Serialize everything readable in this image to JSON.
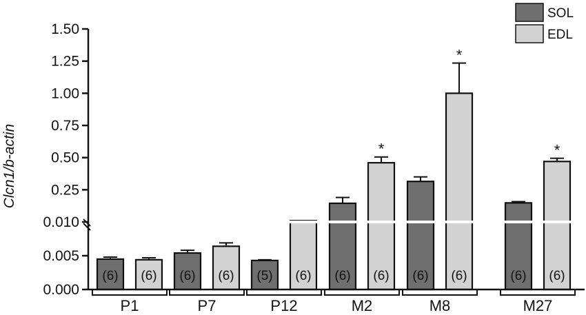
{
  "chart_data": {
    "type": "bar",
    "ylabel": "Clcn1/b-actin",
    "y_axis": {
      "lower_segment": {
        "range": [
          0,
          0.01
        ],
        "ticks": [
          0,
          0.005,
          0.01
        ],
        "tick_labels": [
          "0.000",
          "0.005",
          "0.010"
        ]
      },
      "upper_segment": {
        "range": [
          0,
          1.5
        ],
        "ticks": [
          0.25,
          0.5,
          0.75,
          1.0,
          1.25,
          1.5
        ],
        "tick_labels": [
          "0.25",
          "0.50",
          "0.75",
          "1.00",
          "1.25",
          "1.50"
        ]
      },
      "break": true
    },
    "categories": [
      "P1",
      "P7",
      "P12",
      "M2",
      "M8",
      "M27"
    ],
    "series": [
      {
        "name": "SOL",
        "color": "#6f6f6f",
        "values": [
          0.0045,
          0.0054,
          0.0043,
          0.145,
          0.315,
          0.148
        ],
        "errors": [
          0.0003,
          0.0004,
          0.0001,
          0.045,
          0.035,
          0.01
        ],
        "n": [
          "(6)",
          "(6)",
          "(5)",
          "(6)",
          "(6)",
          "(6)"
        ],
        "significant": [
          false,
          false,
          false,
          false,
          false,
          false
        ]
      },
      {
        "name": "EDL",
        "color": "#d3d3d3",
        "values": [
          0.0044,
          0.0064,
          0.0103,
          0.46,
          1.0,
          0.47
        ],
        "errors": [
          0.0003,
          0.0005,
          0.0001,
          0.045,
          0.235,
          0.025
        ],
        "n": [
          "(6)",
          "(6)",
          "(6)",
          "(6)",
          "(6)",
          "(6)"
        ],
        "significant": [
          false,
          false,
          false,
          true,
          true,
          true
        ]
      }
    ],
    "significance_marker": "*",
    "legend": {
      "position": "top-right"
    },
    "grid": false
  }
}
